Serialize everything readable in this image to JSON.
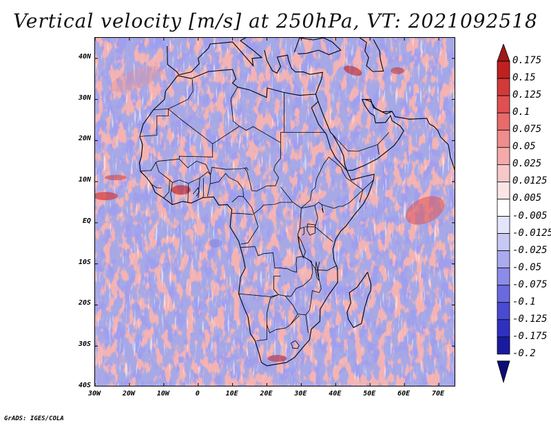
{
  "title": "Vertical velocity [m/s] at 250hPa, VT: 2021092518",
  "credit": "GrADS: IGES/COLA",
  "map": {
    "lon_range": [
      -30,
      75
    ],
    "lat_range": [
      -40,
      45
    ],
    "lat_labels": [
      "40N",
      "30N",
      "20N",
      "10N",
      "EQ",
      "10S",
      "20S",
      "30S",
      "40S"
    ],
    "lat_values": [
      40,
      30,
      20,
      10,
      0,
      -10,
      -20,
      -30,
      -40
    ],
    "lon_labels": [
      "30W",
      "20W",
      "10W",
      "0",
      "10E",
      "20E",
      "30E",
      "40E",
      "50E",
      "60E",
      "70E"
    ],
    "lon_values": [
      -30,
      -20,
      -10,
      0,
      10,
      20,
      30,
      40,
      50,
      60,
      70
    ],
    "boundary_color": "#000000"
  },
  "colorbar": {
    "labels": [
      "0.175",
      "0.15",
      "0.125",
      "0.1",
      "0.075",
      "0.05",
      "0.025",
      "0.0125",
      "0.005",
      "-0.005",
      "-0.0125",
      "-0.025",
      "-0.05",
      "-0.075",
      "-0.1",
      "-0.125",
      "-0.175",
      "-0.2"
    ],
    "colors": [
      "#a01818",
      "#c02020",
      "#d23a3a",
      "#e05050",
      "#e86a6a",
      "#ef8c8c",
      "#f4aaaa",
      "#f8c8c8",
      "#fbe4e4",
      "#ffffff",
      "#e4e4fb",
      "#c8c8f4",
      "#aaaaee",
      "#8c8ce8",
      "#6a6ade",
      "#4a4ad2",
      "#3030c0",
      "#1a1aa0",
      "#0c0c78"
    ]
  }
}
